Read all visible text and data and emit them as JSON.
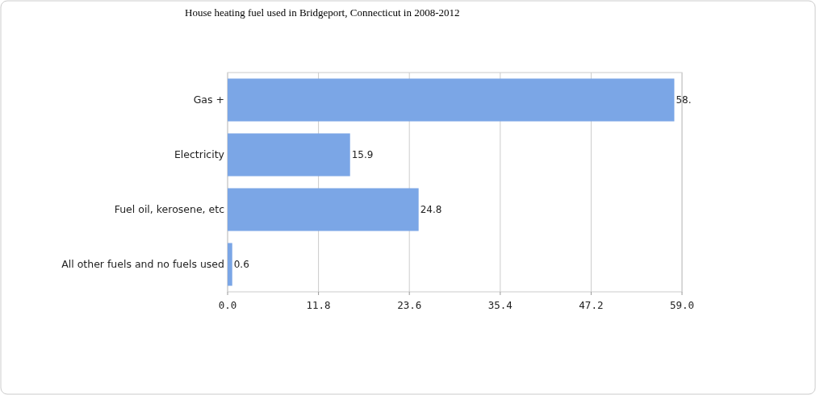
{
  "chart_data": {
    "type": "bar",
    "orientation": "horizontal",
    "title": "House heating fuel used in Bridgeport, Connecticut in 2008-2012",
    "categories": [
      "Gas +",
      "Electricity",
      "Fuel oil, kerosene, etc",
      "All other fuels and no fuels used"
    ],
    "values": [
      58,
      15.9,
      24.8,
      0.6
    ],
    "value_labels": [
      "58.",
      "15.9",
      "24.8",
      "0.6"
    ],
    "color": "#7ba6e6",
    "xlim": [
      0,
      59
    ],
    "xticks": [
      {
        "value": 0,
        "label": "0.0"
      },
      {
        "value": 11.8,
        "label": "11.8"
      },
      {
        "value": 23.6,
        "label": "23.6"
      },
      {
        "value": 35.4,
        "label": "35.4"
      },
      {
        "value": 47.2,
        "label": "47.2"
      },
      {
        "value": 59,
        "label": "59.0"
      }
    ],
    "grid": "x"
  }
}
